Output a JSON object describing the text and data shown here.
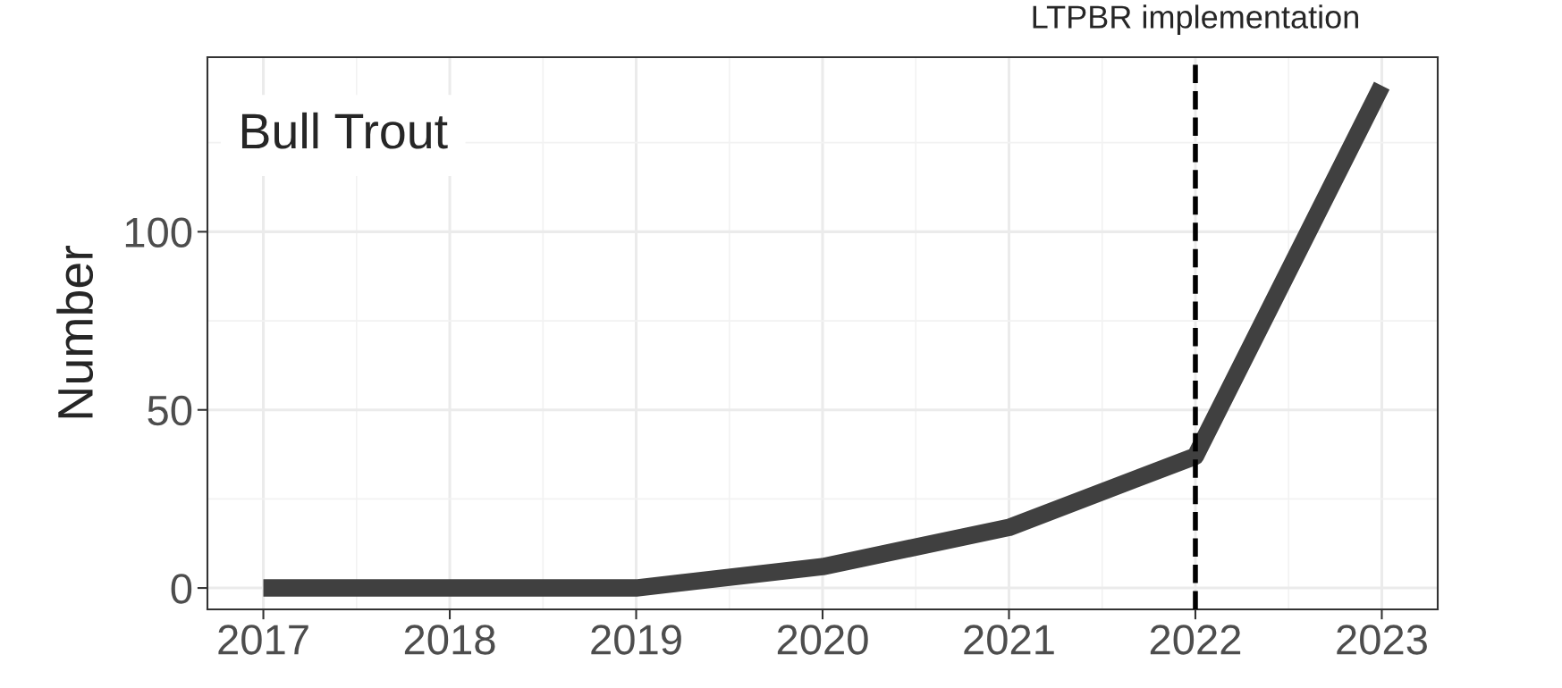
{
  "chart_data": {
    "type": "line",
    "x": [
      2017,
      2018,
      2019,
      2020,
      2021,
      2022,
      2023
    ],
    "series": [
      {
        "color": "#404040",
        "values": [
          0,
          0,
          0,
          6,
          17,
          37,
          141
        ]
      }
    ],
    "ylabel": "Number",
    "xlim": [
      2016.7,
      2023.3
    ],
    "xticks": [
      2017,
      2018,
      2019,
      2020,
      2021,
      2022,
      2023
    ],
    "ylim": [
      -6,
      149
    ],
    "yticks": [
      0,
      50,
      100
    ],
    "grid": true,
    "line_style": "solid",
    "marker": "none",
    "ref_lines": [
      {
        "axis": "x",
        "value": 2022,
        "label": "LTPBR implementation",
        "color": "#000000",
        "line_style": "dashed"
      }
    ],
    "annotations": [
      "Bull Trout"
    ]
  }
}
